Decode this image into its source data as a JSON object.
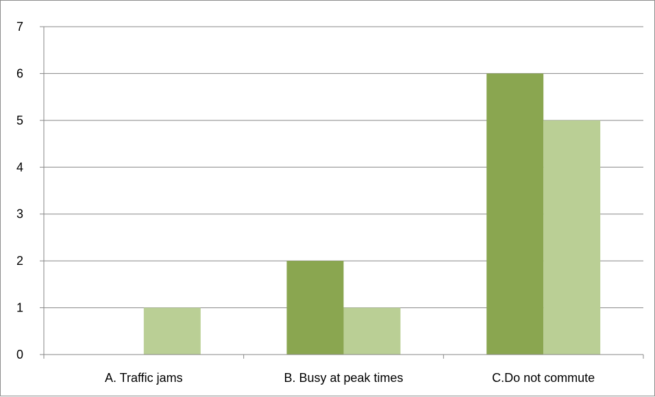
{
  "chart_data": {
    "type": "bar",
    "categories": [
      "A. Traffic jams",
      "B. Busy at peak times",
      "C.Do not commute"
    ],
    "series": [
      {
        "values": [
          0,
          2,
          6
        ],
        "color": "#8aa650"
      },
      {
        "values": [
          1,
          1,
          5
        ],
        "color": "#bacf95"
      }
    ],
    "ylim": [
      0,
      7
    ],
    "yticks": [
      0,
      1,
      2,
      3,
      4,
      5,
      6,
      7
    ],
    "grid": true,
    "legend": "none",
    "title": "",
    "xlabel": "",
    "ylabel": ""
  }
}
